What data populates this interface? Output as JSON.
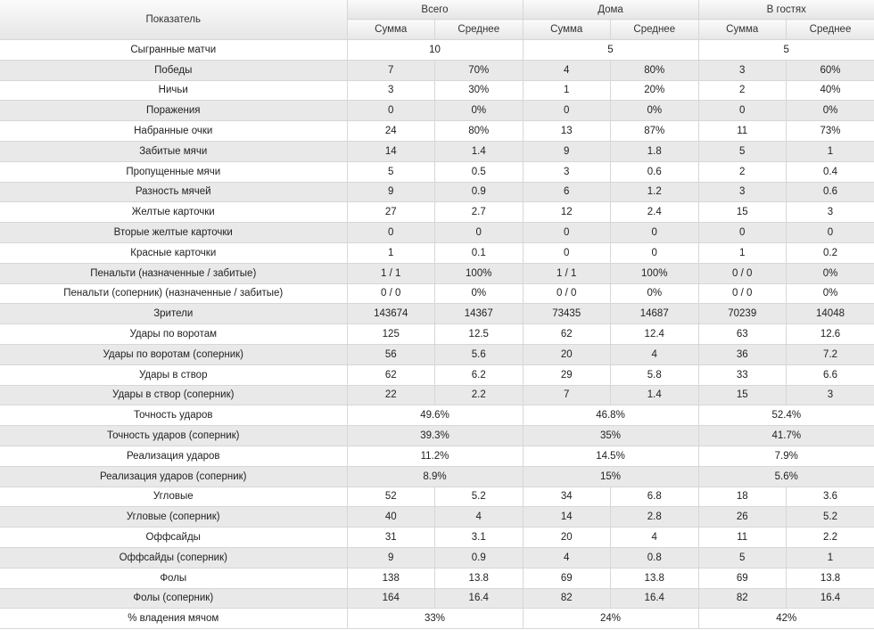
{
  "table": {
    "header": {
      "label": "Показатель",
      "groups": [
        "Всего",
        "Дома",
        "В гостях"
      ],
      "subcolumns": [
        "Сумма",
        "Среднее"
      ]
    },
    "rows": [
      {
        "label": "Сыгранные матчи",
        "merged": [
          "10",
          "5",
          "5"
        ]
      },
      {
        "label": "Победы",
        "cells": [
          "7",
          "70%",
          "4",
          "80%",
          "3",
          "60%"
        ]
      },
      {
        "label": "Ничьи",
        "cells": [
          "3",
          "30%",
          "1",
          "20%",
          "2",
          "40%"
        ]
      },
      {
        "label": "Поражения",
        "cells": [
          "0",
          "0%",
          "0",
          "0%",
          "0",
          "0%"
        ]
      },
      {
        "label": "Набранные очки",
        "cells": [
          "24",
          "80%",
          "13",
          "87%",
          "11",
          "73%"
        ]
      },
      {
        "label": "Забитые мячи",
        "cells": [
          "14",
          "1.4",
          "9",
          "1.8",
          "5",
          "1"
        ]
      },
      {
        "label": "Пропущенные мячи",
        "cells": [
          "5",
          "0.5",
          "3",
          "0.6",
          "2",
          "0.4"
        ]
      },
      {
        "label": "Разность мячей",
        "cells": [
          "9",
          "0.9",
          "6",
          "1.2",
          "3",
          "0.6"
        ]
      },
      {
        "label": "Желтые карточки",
        "cells": [
          "27",
          "2.7",
          "12",
          "2.4",
          "15",
          "3"
        ]
      },
      {
        "label": "Вторые желтые карточки",
        "cells": [
          "0",
          "0",
          "0",
          "0",
          "0",
          "0"
        ]
      },
      {
        "label": "Красные карточки",
        "cells": [
          "1",
          "0.1",
          "0",
          "0",
          "1",
          "0.2"
        ]
      },
      {
        "label": "Пенальти (назначенные / забитые)",
        "cells": [
          "1 / 1",
          "100%",
          "1 / 1",
          "100%",
          "0 / 0",
          "0%"
        ]
      },
      {
        "label": "Пенальти (соперник) (назначенные / забитые)",
        "cells": [
          "0 / 0",
          "0%",
          "0 / 0",
          "0%",
          "0 / 0",
          "0%"
        ]
      },
      {
        "label": "Зрители",
        "cells": [
          "143674",
          "14367",
          "73435",
          "14687",
          "70239",
          "14048"
        ]
      },
      {
        "label": "Удары по воротам",
        "cells": [
          "125",
          "12.5",
          "62",
          "12.4",
          "63",
          "12.6"
        ]
      },
      {
        "label": "Удары по воротам (соперник)",
        "cells": [
          "56",
          "5.6",
          "20",
          "4",
          "36",
          "7.2"
        ]
      },
      {
        "label": "Удары в створ",
        "cells": [
          "62",
          "6.2",
          "29",
          "5.8",
          "33",
          "6.6"
        ]
      },
      {
        "label": "Удары в створ (соперник)",
        "cells": [
          "22",
          "2.2",
          "7",
          "1.4",
          "15",
          "3"
        ]
      },
      {
        "label": "Точность ударов",
        "merged": [
          "49.6%",
          "46.8%",
          "52.4%"
        ]
      },
      {
        "label": "Точность ударов (соперник)",
        "merged": [
          "39.3%",
          "35%",
          "41.7%"
        ]
      },
      {
        "label": "Реализация ударов",
        "merged": [
          "11.2%",
          "14.5%",
          "7.9%"
        ]
      },
      {
        "label": "Реализация ударов (соперник)",
        "merged": [
          "8.9%",
          "15%",
          "5.6%"
        ]
      },
      {
        "label": "Угловые",
        "cells": [
          "52",
          "5.2",
          "34",
          "6.8",
          "18",
          "3.6"
        ]
      },
      {
        "label": "Угловые (соперник)",
        "cells": [
          "40",
          "4",
          "14",
          "2.8",
          "26",
          "5.2"
        ]
      },
      {
        "label": "Оффсайды",
        "cells": [
          "31",
          "3.1",
          "20",
          "4",
          "11",
          "2.2"
        ]
      },
      {
        "label": "Оффсайды (соперник)",
        "cells": [
          "9",
          "0.9",
          "4",
          "0.8",
          "5",
          "1"
        ]
      },
      {
        "label": "Фолы",
        "cells": [
          "138",
          "13.8",
          "69",
          "13.8",
          "69",
          "13.8"
        ]
      },
      {
        "label": "Фолы (соперник)",
        "cells": [
          "164",
          "16.4",
          "82",
          "16.4",
          "82",
          "16.4"
        ]
      },
      {
        "label": "% владения мячом",
        "merged": [
          "33%",
          "24%",
          "42%"
        ]
      }
    ]
  }
}
